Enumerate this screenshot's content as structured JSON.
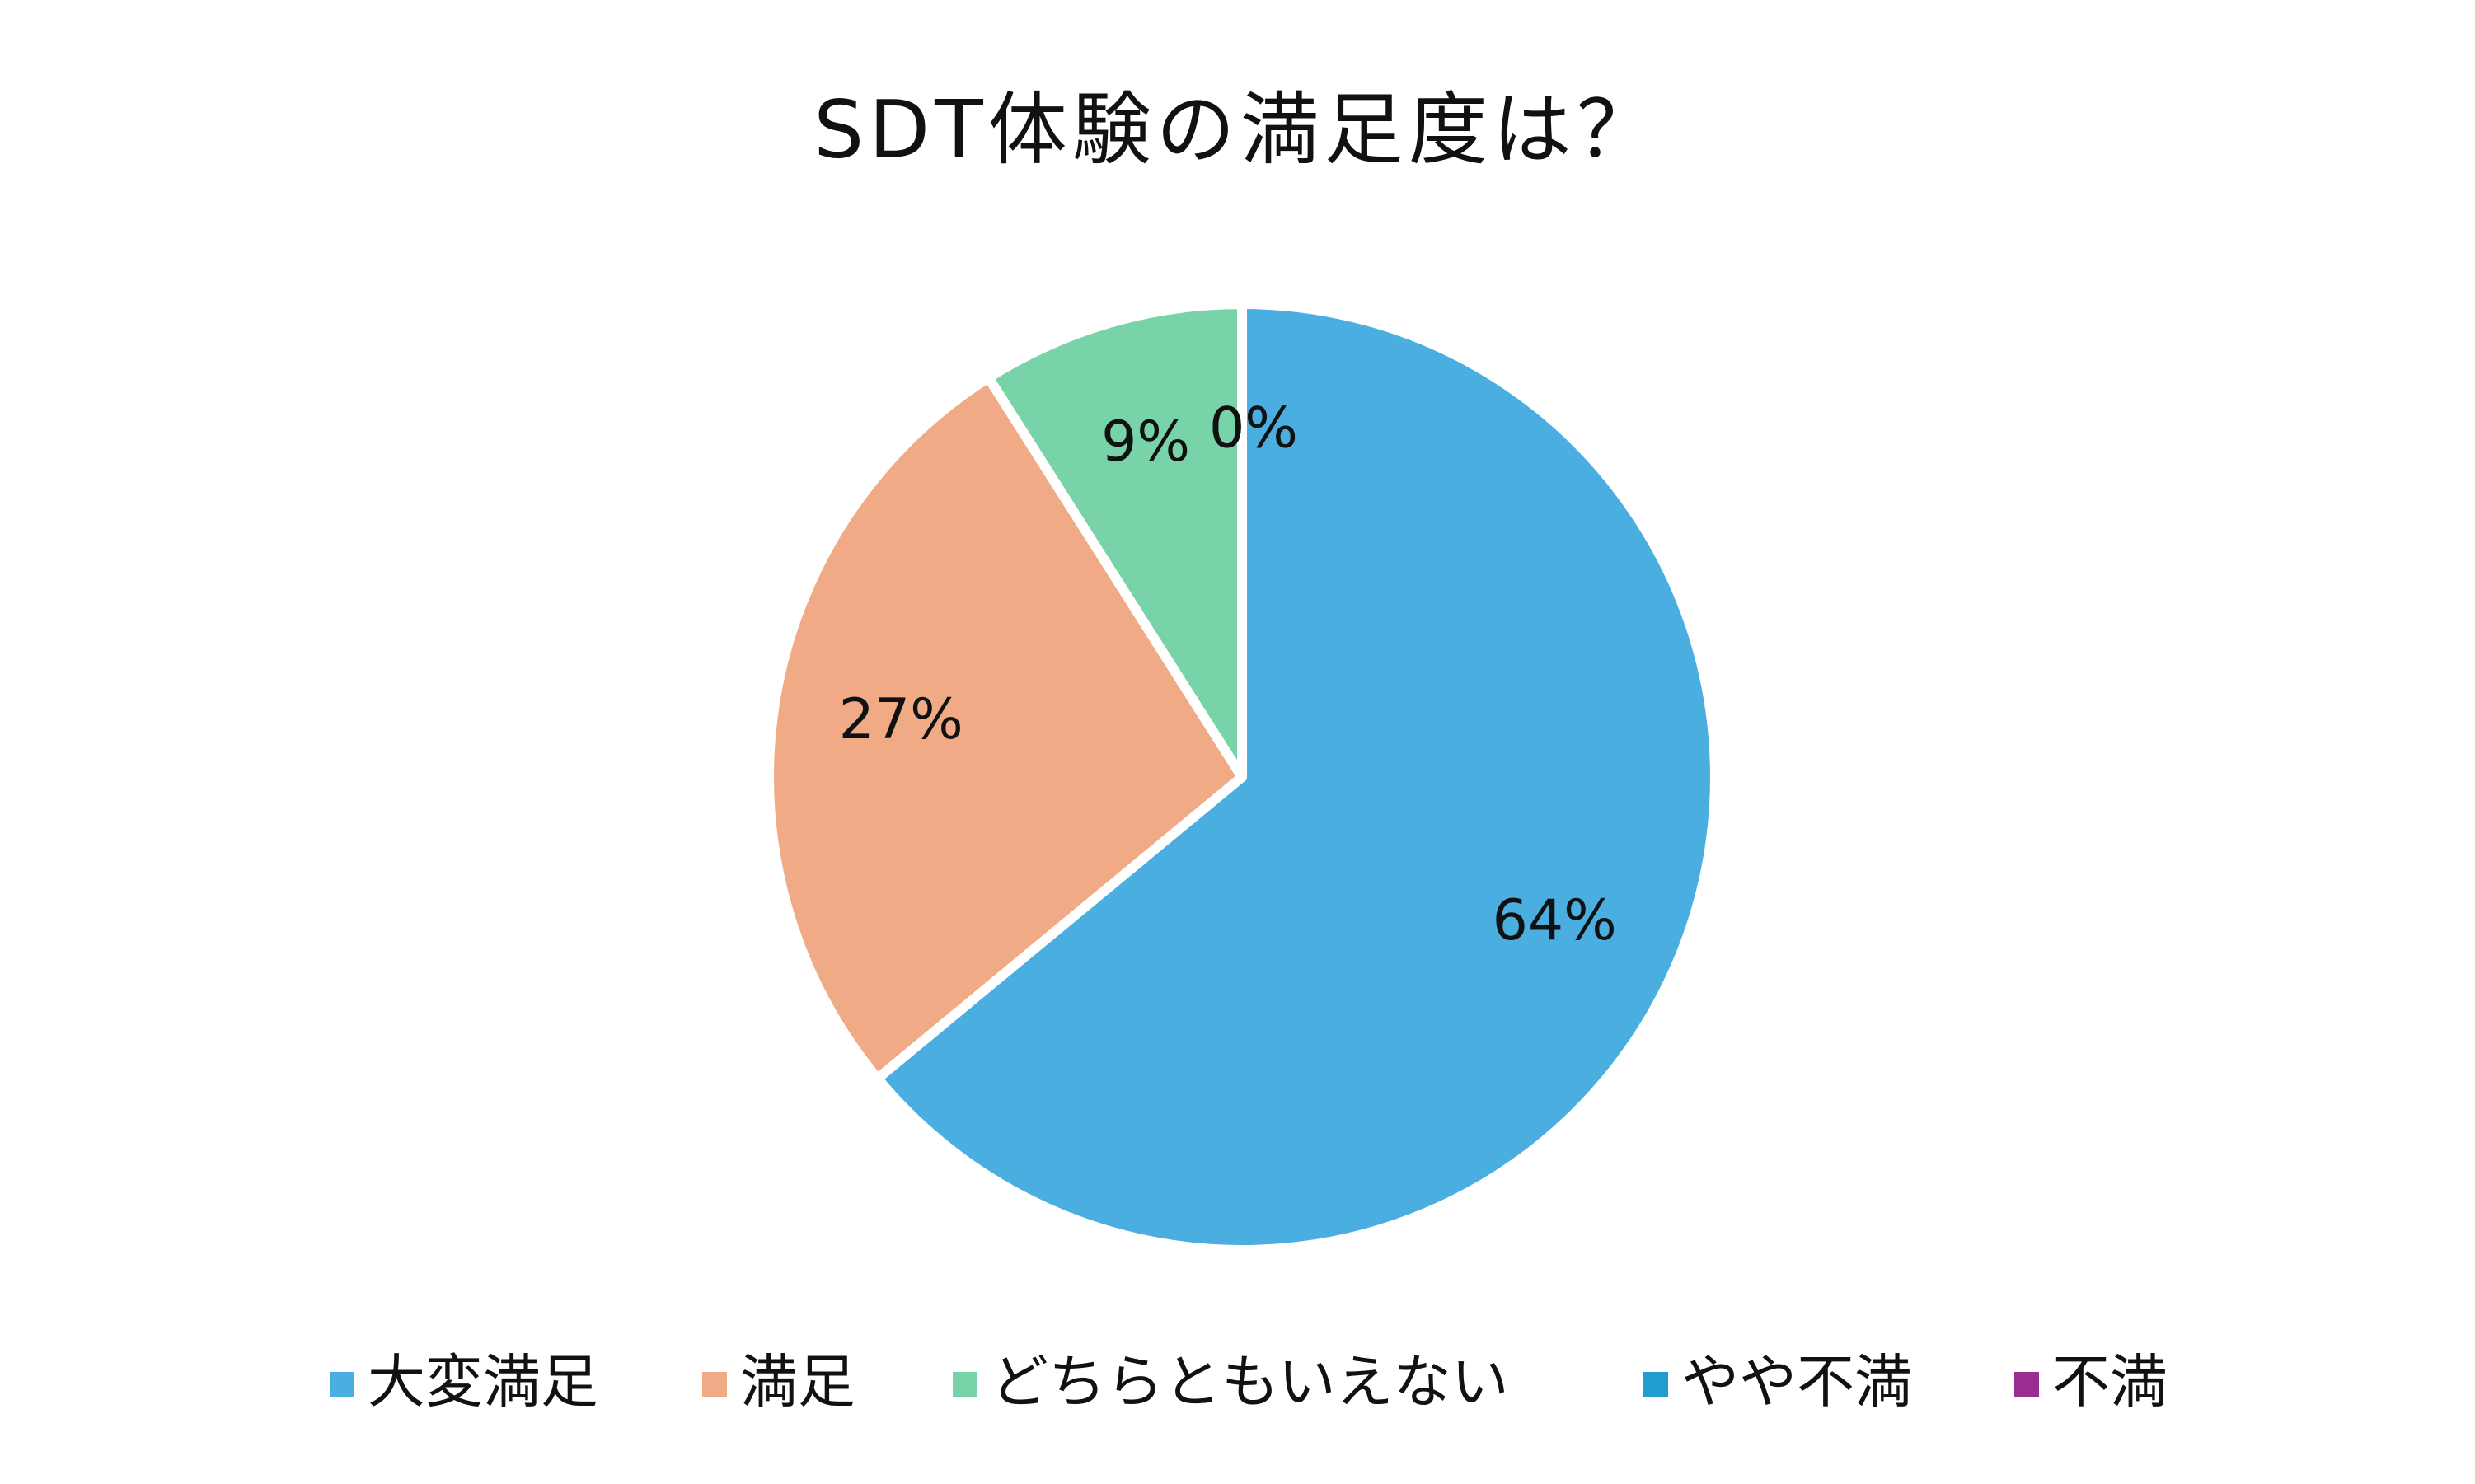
{
  "chart_data": {
    "type": "pie",
    "title": "SDT体験の満足度は？",
    "categories": [
      "大変満足",
      "満足",
      "どちらともいえない",
      "やや不満",
      "不満"
    ],
    "values": [
      64,
      27,
      9,
      0,
      0
    ],
    "value_labels": [
      "64%",
      "27%",
      "9%",
      "0%",
      "0%"
    ],
    "colors": [
      "#4aafe0",
      "#f1aa86",
      "#78d4a8",
      "#1f9dd0",
      "#9b2c90"
    ],
    "legend": "bottom"
  }
}
